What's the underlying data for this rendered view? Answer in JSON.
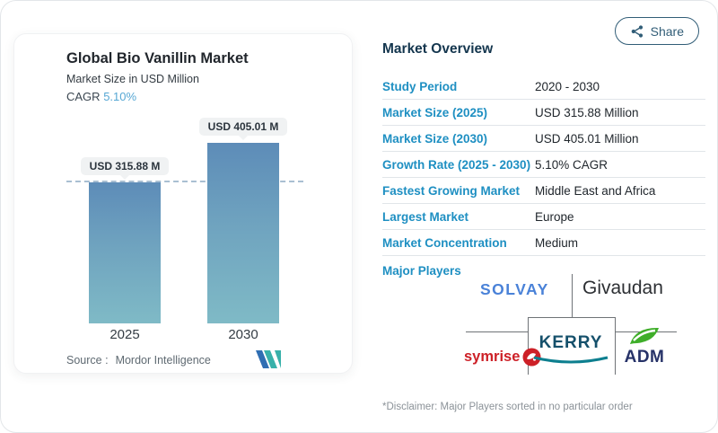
{
  "share": {
    "label": "Share"
  },
  "chart_card": {
    "title": "Global Bio Vanillin Market",
    "subtitle": "Market Size in USD Million",
    "cagr_label": "CAGR",
    "cagr_value": "5.10%",
    "bars": [
      {
        "year": "2025",
        "label": "USD 315.88 M",
        "value": 315.88
      },
      {
        "year": "2030",
        "label": "USD 405.01 M",
        "value": 405.01
      }
    ],
    "source_label": "Source :",
    "source_value": "Mordor Intelligence"
  },
  "chart_data": {
    "type": "bar",
    "title": "Global Bio Vanillin Market",
    "subtitle": "Market Size in USD Million",
    "ylabel": "USD Million",
    "categories": [
      "2025",
      "2030"
    ],
    "values": [
      315.88,
      405.01
    ],
    "data_labels": [
      "USD 315.88 M",
      "USD 405.01 M"
    ],
    "reference_line": 315.88,
    "grid": false,
    "legend": "none",
    "bar_color_top": "#5d8cb8",
    "bar_color_bottom": "#7fbac6",
    "reference_line_color": "#a9bfd2"
  },
  "overview": {
    "title": "Market Overview",
    "rows": [
      {
        "label": "Study Period",
        "value": "2020 - 2030"
      },
      {
        "label": "Market Size (2025)",
        "value": "USD 315.88 Million"
      },
      {
        "label": "Market Size (2030)",
        "value": "USD 405.01 Million"
      },
      {
        "label": "Growth Rate (2025 - 2030)",
        "value": "5.10% CAGR"
      },
      {
        "label": "Fastest Growing Market",
        "value": "Middle East and Africa"
      },
      {
        "label": "Largest Market",
        "value": "Europe"
      },
      {
        "label": "Market Concentration",
        "value": "Medium"
      }
    ],
    "major_players_label": "Major Players",
    "players": [
      "SOLVAY",
      "Givaudan",
      "symrise",
      "KERRY",
      "ADM"
    ],
    "disclaimer": "*Disclaimer: Major Players sorted in no particular order"
  },
  "icons": {
    "share": "share-nodes-icon",
    "mordor": "mordor-intelligence-logo",
    "symrise_mark": "symrise-circle-icon",
    "kerry_swoosh": "kerry-swoosh-icon",
    "adm_leaf": "adm-leaf-icon"
  },
  "colors": {
    "accent_label_blue": "#1e8fc2",
    "header_navy": "#14364e",
    "cagr_blue": "#56a7d4",
    "share_outline": "#315d77",
    "solvay_blue": "#4a82d8",
    "symrise_red": "#cd2027",
    "kerry_teal": "#15506b",
    "kerry_swoosh_teal": "#0d7f8f",
    "adm_green": "#3fae2a",
    "adm_navy": "#263268"
  }
}
